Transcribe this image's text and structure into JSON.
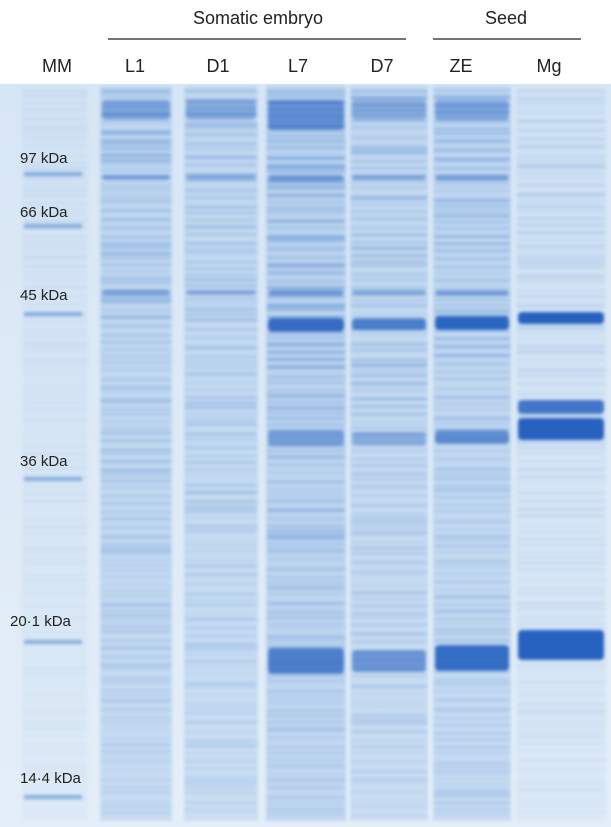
{
  "groups": [
    {
      "label": "Somatic embryo"
    },
    {
      "label": "Seed"
    }
  ],
  "lanes": [
    "MM",
    "L1",
    "D1",
    "L7",
    "D7",
    "ZE",
    "Mg"
  ],
  "markers": [
    "97 kDa",
    "66 kDa",
    "45 kDa",
    "36 kDa",
    "20·1 kDa",
    "14·4 kDa"
  ]
}
